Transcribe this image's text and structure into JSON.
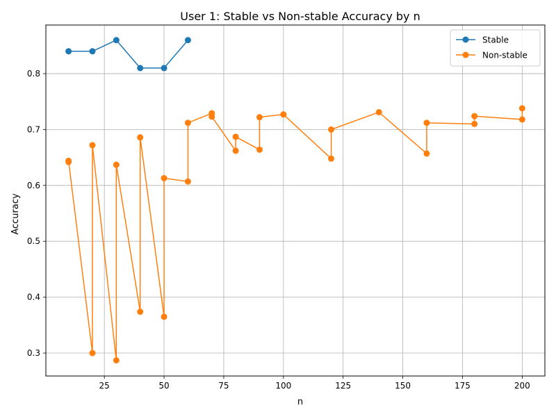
{
  "chart_data": {
    "type": "line",
    "title": "User 1: Stable vs Non-stable Accuracy by n",
    "xlabel": "n",
    "ylabel": "Accuracy",
    "xlim": [
      0.5,
      209.5
    ],
    "ylim": [
      0.259,
      0.887
    ],
    "xticks": [
      25,
      50,
      75,
      100,
      125,
      150,
      175,
      200
    ],
    "xtick_labels": [
      "25",
      "50",
      "75",
      "100",
      "125",
      "150",
      "175",
      "200"
    ],
    "yticks": [
      0.3,
      0.4,
      0.5,
      0.6,
      0.7,
      0.8
    ],
    "ytick_labels": [
      "0.3",
      "0.4",
      "0.5",
      "0.6",
      "0.7",
      "0.8"
    ],
    "grid": true,
    "legend_position": "top-right",
    "series": [
      {
        "name": "Stable",
        "color": "#1f77b4",
        "x": [
          10,
          20,
          30,
          40,
          50,
          60
        ],
        "y": [
          0.84,
          0.84,
          0.86,
          0.81,
          0.81,
          0.86
        ]
      },
      {
        "name": "Non-stable",
        "color": "#ff7f0e",
        "x": [
          10,
          10,
          20,
          20,
          30,
          30,
          40,
          40,
          50,
          50,
          60,
          60,
          70,
          70,
          80,
          80,
          90,
          90,
          100,
          120,
          120,
          140,
          160,
          160,
          180,
          180,
          200,
          200
        ],
        "y": [
          0.642,
          0.644,
          0.3,
          0.672,
          0.287,
          0.637,
          0.374,
          0.686,
          0.365,
          0.613,
          0.607,
          0.712,
          0.729,
          0.723,
          0.662,
          0.687,
          0.664,
          0.722,
          0.727,
          0.648,
          0.7,
          0.731,
          0.657,
          0.712,
          0.71,
          0.724,
          0.718,
          0.738
        ]
      }
    ]
  }
}
